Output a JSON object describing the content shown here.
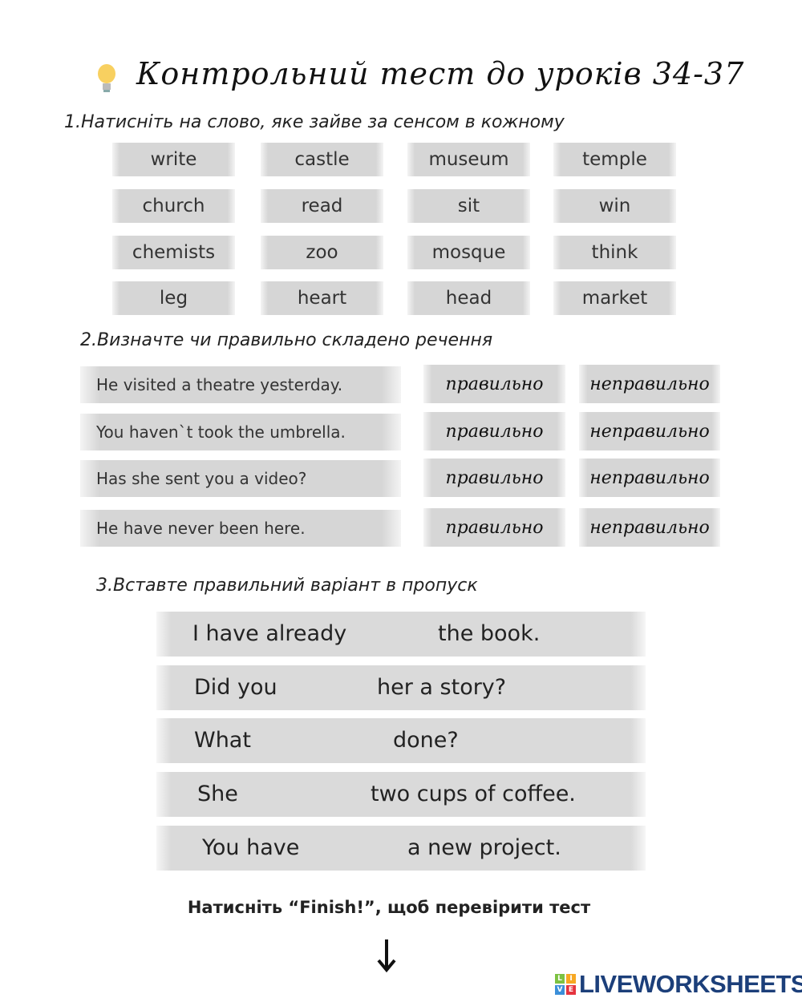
{
  "title": "Контрольний тест до уроків 34-37",
  "q1": {
    "num": "1.",
    "text": "Натисніть на слово, яке зайве за сенсом в кожному",
    "words": [
      [
        "write",
        "castle",
        "museum",
        "temple"
      ],
      [
        "church",
        "read",
        "sit",
        "win"
      ],
      [
        "chemists",
        "zoo",
        "mosque",
        "think"
      ],
      [
        "leg",
        "heart",
        "head",
        "market"
      ]
    ]
  },
  "q2": {
    "num": "2.",
    "text": "Визначте чи правильно складено речення",
    "sentences": [
      "He visited a theatre yesterday.",
      "You haven`t took the umbrella.",
      "Has she sent you a video?",
      "He have never been here."
    ],
    "correct_label": "правильно",
    "incorrect_label": "неправильно"
  },
  "q3": {
    "num": "3.",
    "text": "Вставте правильний варіант в пропуск",
    "rows": [
      {
        "before": "I have already",
        "after": "the book."
      },
      {
        "before": "Did you",
        "after": "her a story?"
      },
      {
        "before": "What",
        "after": "done?"
      },
      {
        "before": "She",
        "after": "two cups of coffee."
      },
      {
        "before": "You have",
        "after": "a new project."
      }
    ]
  },
  "finish_text": "Натисніть “Finish!”, щоб перевірити тест",
  "logo": {
    "text": "LIVEWORKSHEETS",
    "letters": [
      "L",
      "I",
      "V",
      "E"
    ],
    "colors": [
      "#7cc242",
      "#f7a823",
      "#3b8fd9",
      "#e5343f"
    ]
  }
}
